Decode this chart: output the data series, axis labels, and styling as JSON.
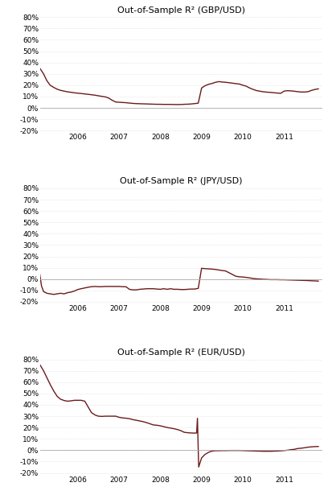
{
  "line_color": "#6B1A1A",
  "line_width": 1.0,
  "background_color": "#ffffff",
  "title_fontsize": 8,
  "tick_fontsize": 6.5,
  "ylim": [
    -0.22,
    0.82
  ],
  "yticks": [
    -0.2,
    -0.1,
    0.0,
    0.1,
    0.2,
    0.3,
    0.4,
    0.5,
    0.6,
    0.7,
    0.8
  ],
  "zero_line_color": "#aaaaaa",
  "xlim": [
    2005.08,
    2011.92
  ],
  "xticks": [
    2006,
    2007,
    2008,
    2009,
    2010,
    2011
  ],
  "xtick_labels": [
    "2006",
    "2007",
    "2008",
    "2009",
    "2010",
    "2011"
  ],
  "panels": [
    {
      "title": "Out-of-Sample R² (GBP/USD)",
      "data_x": [
        2005.08,
        2005.17,
        2005.25,
        2005.33,
        2005.42,
        2005.5,
        2005.58,
        2005.67,
        2005.75,
        2005.83,
        2005.92,
        2006.0,
        2006.08,
        2006.17,
        2006.25,
        2006.33,
        2006.42,
        2006.5,
        2006.58,
        2006.67,
        2006.75,
        2006.83,
        2006.92,
        2007.0,
        2007.08,
        2007.17,
        2007.25,
        2007.33,
        2007.42,
        2007.5,
        2007.58,
        2007.67,
        2007.75,
        2007.83,
        2007.92,
        2008.0,
        2008.08,
        2008.17,
        2008.25,
        2008.33,
        2008.42,
        2008.5,
        2008.58,
        2008.67,
        2008.75,
        2008.83,
        2008.92,
        2009.0,
        2009.08,
        2009.17,
        2009.25,
        2009.33,
        2009.42,
        2009.5,
        2009.58,
        2009.67,
        2009.75,
        2009.83,
        2009.92,
        2010.0,
        2010.08,
        2010.17,
        2010.25,
        2010.33,
        2010.42,
        2010.5,
        2010.58,
        2010.67,
        2010.75,
        2010.83,
        2010.92,
        2011.0,
        2011.08,
        2011.17,
        2011.25,
        2011.33,
        2011.42,
        2011.5,
        2011.58,
        2011.67,
        2011.75,
        2011.83
      ],
      "data_y": [
        0.35,
        0.3,
        0.24,
        0.2,
        0.18,
        0.165,
        0.155,
        0.148,
        0.142,
        0.138,
        0.133,
        0.13,
        0.127,
        0.123,
        0.12,
        0.116,
        0.112,
        0.107,
        0.102,
        0.097,
        0.087,
        0.068,
        0.052,
        0.05,
        0.048,
        0.046,
        0.043,
        0.04,
        0.038,
        0.037,
        0.036,
        0.035,
        0.034,
        0.033,
        0.032,
        0.032,
        0.031,
        0.031,
        0.031,
        0.03,
        0.03,
        0.03,
        0.032,
        0.033,
        0.035,
        0.038,
        0.042,
        0.175,
        0.195,
        0.208,
        0.215,
        0.225,
        0.232,
        0.228,
        0.226,
        0.222,
        0.218,
        0.214,
        0.21,
        0.2,
        0.192,
        0.175,
        0.163,
        0.153,
        0.147,
        0.142,
        0.139,
        0.137,
        0.134,
        0.131,
        0.129,
        0.148,
        0.152,
        0.15,
        0.147,
        0.143,
        0.14,
        0.14,
        0.143,
        0.155,
        0.163,
        0.168
      ]
    },
    {
      "title": "Out-of-Sample R² (JPY/USD)",
      "data_x": [
        2005.08,
        2005.12,
        2005.17,
        2005.25,
        2005.33,
        2005.42,
        2005.5,
        2005.58,
        2005.67,
        2005.75,
        2005.83,
        2005.92,
        2006.0,
        2006.08,
        2006.17,
        2006.25,
        2006.33,
        2006.42,
        2006.5,
        2006.58,
        2006.67,
        2006.75,
        2006.83,
        2006.92,
        2007.0,
        2007.08,
        2007.17,
        2007.25,
        2007.33,
        2007.42,
        2007.5,
        2007.58,
        2007.67,
        2007.75,
        2007.83,
        2007.92,
        2008.0,
        2008.08,
        2008.17,
        2008.25,
        2008.33,
        2008.42,
        2008.5,
        2008.58,
        2008.67,
        2008.75,
        2008.83,
        2008.92,
        2009.0,
        2009.08,
        2009.17,
        2009.25,
        2009.33,
        2009.42,
        2009.5,
        2009.58,
        2009.67,
        2009.75,
        2009.83,
        2009.92,
        2010.0,
        2010.08,
        2010.17,
        2010.25,
        2010.33,
        2010.42,
        2010.5,
        2010.58,
        2010.67,
        2010.75,
        2010.83,
        2010.92,
        2011.0,
        2011.08,
        2011.17,
        2011.25,
        2011.33,
        2011.42,
        2011.5,
        2011.58,
        2011.67,
        2011.75,
        2011.83
      ],
      "data_y": [
        0.04,
        -0.06,
        -0.11,
        -0.125,
        -0.13,
        -0.135,
        -0.13,
        -0.125,
        -0.13,
        -0.12,
        -0.115,
        -0.105,
        -0.092,
        -0.085,
        -0.078,
        -0.072,
        -0.067,
        -0.065,
        -0.067,
        -0.067,
        -0.065,
        -0.065,
        -0.065,
        -0.065,
        -0.065,
        -0.067,
        -0.068,
        -0.09,
        -0.095,
        -0.095,
        -0.09,
        -0.088,
        -0.085,
        -0.085,
        -0.085,
        -0.088,
        -0.09,
        -0.085,
        -0.09,
        -0.085,
        -0.09,
        -0.09,
        -0.092,
        -0.092,
        -0.09,
        -0.088,
        -0.088,
        -0.082,
        0.095,
        0.092,
        0.09,
        0.088,
        0.085,
        0.08,
        0.075,
        0.072,
        0.055,
        0.04,
        0.025,
        0.02,
        0.018,
        0.015,
        0.01,
        0.005,
        0.002,
        0.0,
        -0.002,
        -0.003,
        -0.005,
        -0.005,
        -0.005,
        -0.006,
        -0.006,
        -0.007,
        -0.008,
        -0.009,
        -0.01,
        -0.011,
        -0.012,
        -0.013,
        -0.015,
        -0.016,
        -0.018
      ]
    },
    {
      "title": "Out-of-Sample R² (EUR/USD)",
      "data_x": [
        2005.08,
        2005.17,
        2005.25,
        2005.33,
        2005.42,
        2005.5,
        2005.58,
        2005.67,
        2005.75,
        2005.83,
        2005.92,
        2006.0,
        2006.08,
        2006.17,
        2006.25,
        2006.33,
        2006.42,
        2006.5,
        2006.58,
        2006.67,
        2006.75,
        2006.83,
        2006.92,
        2007.0,
        2007.08,
        2007.17,
        2007.25,
        2007.33,
        2007.42,
        2007.5,
        2007.58,
        2007.67,
        2007.75,
        2007.83,
        2007.92,
        2008.0,
        2008.08,
        2008.17,
        2008.25,
        2008.33,
        2008.42,
        2008.5,
        2008.58,
        2008.67,
        2008.75,
        2008.83,
        2008.88,
        2008.9,
        2008.93,
        2009.0,
        2009.08,
        2009.17,
        2009.25,
        2009.33,
        2009.42,
        2009.5,
        2009.58,
        2009.67,
        2009.75,
        2009.83,
        2009.92,
        2010.0,
        2010.08,
        2010.17,
        2010.25,
        2010.33,
        2010.42,
        2010.5,
        2010.58,
        2010.67,
        2010.75,
        2010.83,
        2010.92,
        2011.0,
        2011.08,
        2011.17,
        2011.25,
        2011.33,
        2011.42,
        2011.5,
        2011.58,
        2011.67,
        2011.75,
        2011.83
      ],
      "data_y": [
        0.755,
        0.7,
        0.64,
        0.58,
        0.52,
        0.475,
        0.45,
        0.438,
        0.432,
        0.435,
        0.44,
        0.44,
        0.44,
        0.432,
        0.382,
        0.332,
        0.31,
        0.3,
        0.298,
        0.3,
        0.3,
        0.3,
        0.3,
        0.29,
        0.285,
        0.282,
        0.278,
        0.27,
        0.264,
        0.258,
        0.252,
        0.243,
        0.233,
        0.223,
        0.22,
        0.215,
        0.208,
        0.2,
        0.195,
        0.19,
        0.182,
        0.172,
        0.158,
        0.154,
        0.152,
        0.151,
        0.152,
        0.282,
        -0.148,
        -0.068,
        -0.038,
        -0.018,
        -0.008,
        -0.004,
        -0.004,
        -0.003,
        -0.003,
        -0.002,
        -0.002,
        -0.002,
        -0.002,
        -0.003,
        -0.004,
        -0.005,
        -0.006,
        -0.007,
        -0.008,
        -0.009,
        -0.009,
        -0.009,
        -0.008,
        -0.007,
        -0.005,
        -0.003,
        0.0,
        0.005,
        0.008,
        0.015,
        0.018,
        0.022,
        0.027,
        0.03,
        0.032,
        0.033
      ]
    }
  ]
}
